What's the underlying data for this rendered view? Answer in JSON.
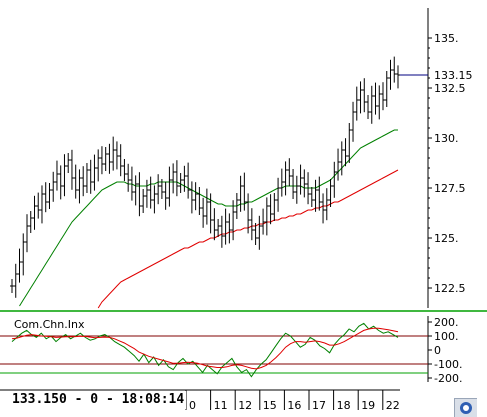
{
  "chart_data": [
    {
      "type": "line",
      "subtype": "ohlc-bars-with-moving-averages",
      "title": "",
      "xlabel": "",
      "ylabel": "",
      "ylim": [
        121.5,
        136.5
      ],
      "y_ticks": [
        "122.5",
        "125.",
        "127.5",
        "130.",
        "132.5",
        "135."
      ],
      "last_price_label": "133.15",
      "last_price": 133.15,
      "x_date_labels": [
        "0",
        "11",
        "12",
        "15",
        "16",
        "17",
        "18",
        "19",
        "22"
      ],
      "colors": {
        "price_bars": "#000000",
        "ma_short": "#008000",
        "ma_long": "#e00000",
        "last_price_line": "#000080",
        "separator": "#00a000"
      },
      "price_close": [
        122.6,
        123.2,
        123.8,
        124.8,
        125.6,
        126.0,
        126.6,
        126.4,
        127.2,
        126.8,
        127.4,
        127.8,
        128.2,
        127.6,
        128.6,
        128.9,
        128.0,
        127.4,
        128.0,
        127.6,
        128.4,
        127.8,
        128.5,
        129.0,
        128.7,
        129.2,
        128.8,
        129.4,
        129.1,
        128.6,
        128.2,
        127.9,
        127.3,
        127.7,
        126.6,
        127.1,
        127.4,
        126.9,
        127.2,
        127.6,
        127.3,
        127.0,
        127.9,
        128.3,
        127.6,
        127.9,
        128.1,
        127.4,
        126.9,
        127.2,
        126.5,
        126.1,
        126.8,
        125.9,
        125.4,
        125.6,
        125.1,
        125.8,
        125.4,
        126.3,
        126.9,
        127.6,
        126.8,
        125.9,
        125.4,
        125.0,
        125.6,
        125.8,
        126.6,
        126.2,
        126.9,
        127.5,
        127.8,
        128.4,
        128.1,
        127.3,
        127.6,
        128.0,
        127.7,
        127.2,
        126.9,
        127.4,
        126.8,
        126.4,
        126.9,
        127.6,
        128.3,
        128.8,
        129.4,
        129.1,
        130.4,
        131.3,
        131.9,
        132.4,
        131.8,
        131.3,
        132.1,
        131.6,
        132.2,
        131.9,
        133.0,
        133.4,
        133.2,
        133.15
      ],
      "series": [
        {
          "values": [
            121.0,
            121.3,
            121.6,
            121.9,
            122.2,
            122.5,
            122.8,
            123.1,
            123.4,
            123.7,
            124.0,
            124.3,
            124.6,
            124.9,
            125.2,
            125.5,
            125.8,
            126.0,
            126.2,
            126.4,
            126.6,
            126.8,
            127.0,
            127.2,
            127.4,
            127.5,
            127.6,
            127.7,
            127.8,
            127.8,
            127.8,
            127.7,
            127.7,
            127.6,
            127.6,
            127.6,
            127.6,
            127.7,
            127.7,
            127.8,
            127.8,
            127.8,
            127.8,
            127.8,
            127.8,
            127.7,
            127.6,
            127.5,
            127.4,
            127.3,
            127.2,
            127.1,
            127.0,
            126.9,
            126.8,
            126.7,
            126.7,
            126.6,
            126.6,
            126.6,
            126.6,
            126.7,
            126.7,
            126.8,
            126.8,
            126.9,
            127.0,
            127.1,
            127.2,
            127.3,
            127.4,
            127.5,
            127.5,
            127.6,
            127.6,
            127.6,
            127.6,
            127.6,
            127.5,
            127.5,
            127.5,
            127.5,
            127.6,
            127.7,
            127.8,
            127.9,
            128.1,
            128.3,
            128.5,
            128.7,
            128.9,
            129.1,
            129.3,
            129.5,
            129.6,
            129.7,
            129.8,
            129.9,
            130.0,
            130.1,
            130.2,
            130.3,
            130.4,
            130.4
          ]
        },
        {
          "values": [
            null,
            null,
            null,
            null,
            null,
            null,
            null,
            null,
            null,
            null,
            null,
            null,
            null,
            null,
            null,
            null,
            null,
            null,
            null,
            null,
            120.6,
            120.9,
            121.2,
            121.5,
            121.8,
            122.0,
            122.2,
            122.4,
            122.6,
            122.8,
            122.9,
            123.0,
            123.1,
            123.2,
            123.3,
            123.4,
            123.5,
            123.6,
            123.7,
            123.8,
            123.9,
            124.0,
            124.1,
            124.2,
            124.3,
            124.4,
            124.5,
            124.5,
            124.6,
            124.7,
            124.8,
            124.8,
            124.9,
            125.0,
            125.0,
            125.1,
            125.2,
            125.2,
            125.3,
            125.3,
            125.4,
            125.4,
            125.5,
            125.5,
            125.6,
            125.6,
            125.7,
            125.7,
            125.8,
            125.8,
            125.9,
            125.9,
            126.0,
            126.0,
            126.1,
            126.1,
            126.2,
            126.2,
            126.3,
            126.4,
            126.4,
            126.5,
            126.5,
            126.6,
            126.6,
            126.7,
            126.8,
            126.8,
            126.9,
            127.0,
            127.1,
            127.2,
            127.3,
            127.4,
            127.5,
            127.6,
            127.7,
            127.8,
            127.9,
            128.0,
            128.1,
            128.2,
            128.3,
            128.4
          ]
        }
      ]
    },
    {
      "type": "line",
      "title": "Com.Chn.Inx",
      "ylim": [
        -200,
        200
      ],
      "y_ticks": [
        "200.",
        "100.",
        "0",
        "-100.",
        "-200."
      ],
      "level_lines": [
        100,
        -100
      ],
      "colors": {
        "cci": "#008000",
        "signal": "#e00000",
        "level": "#800000"
      },
      "series": [
        {
          "values": [
            60,
            90,
            120,
            140,
            110,
            90,
            120,
            80,
            100,
            60,
            90,
            110,
            80,
            100,
            120,
            90,
            70,
            80,
            100,
            110,
            90,
            60,
            40,
            20,
            -10,
            -40,
            -80,
            -30,
            -90,
            -50,
            -110,
            -70,
            -120,
            -140,
            -90,
            -60,
            -100,
            -80,
            -120,
            -160,
            -110,
            -140,
            -170,
            -120,
            -90,
            -60,
            -120,
            -160,
            -140,
            -190,
            -140,
            -100,
            -70,
            -20,
            30,
            80,
            120,
            100,
            60,
            20,
            40,
            90,
            70,
            30,
            10,
            -20,
            40,
            80,
            110,
            150,
            130,
            170,
            190,
            150,
            170,
            140,
            120,
            130,
            110,
            90
          ]
        },
        {
          "values": [
            80,
            85,
            95,
            105,
            110,
            105,
            100,
            98,
            95,
            90,
            92,
            95,
            94,
            96,
            98,
            97,
            92,
            88,
            90,
            92,
            90,
            80,
            65,
            50,
            30,
            10,
            -15,
            -30,
            -45,
            -55,
            -65,
            -75,
            -85,
            -95,
            -95,
            -90,
            -88,
            -90,
            -95,
            -105,
            -115,
            -120,
            -125,
            -125,
            -120,
            -110,
            -105,
            -110,
            -120,
            -130,
            -135,
            -125,
            -110,
            -85,
            -55,
            -20,
            20,
            45,
            60,
            60,
            55,
            60,
            65,
            60,
            50,
            35,
            35,
            45,
            60,
            80,
            100,
            120,
            140,
            150,
            155,
            155,
            150,
            145,
            138,
            130
          ]
        }
      ]
    }
  ],
  "status": {
    "price": "133.150",
    "dash": "-",
    "volume": "0",
    "time": "18:08:14"
  },
  "icons": {
    "corner": "app-logo-icon"
  }
}
